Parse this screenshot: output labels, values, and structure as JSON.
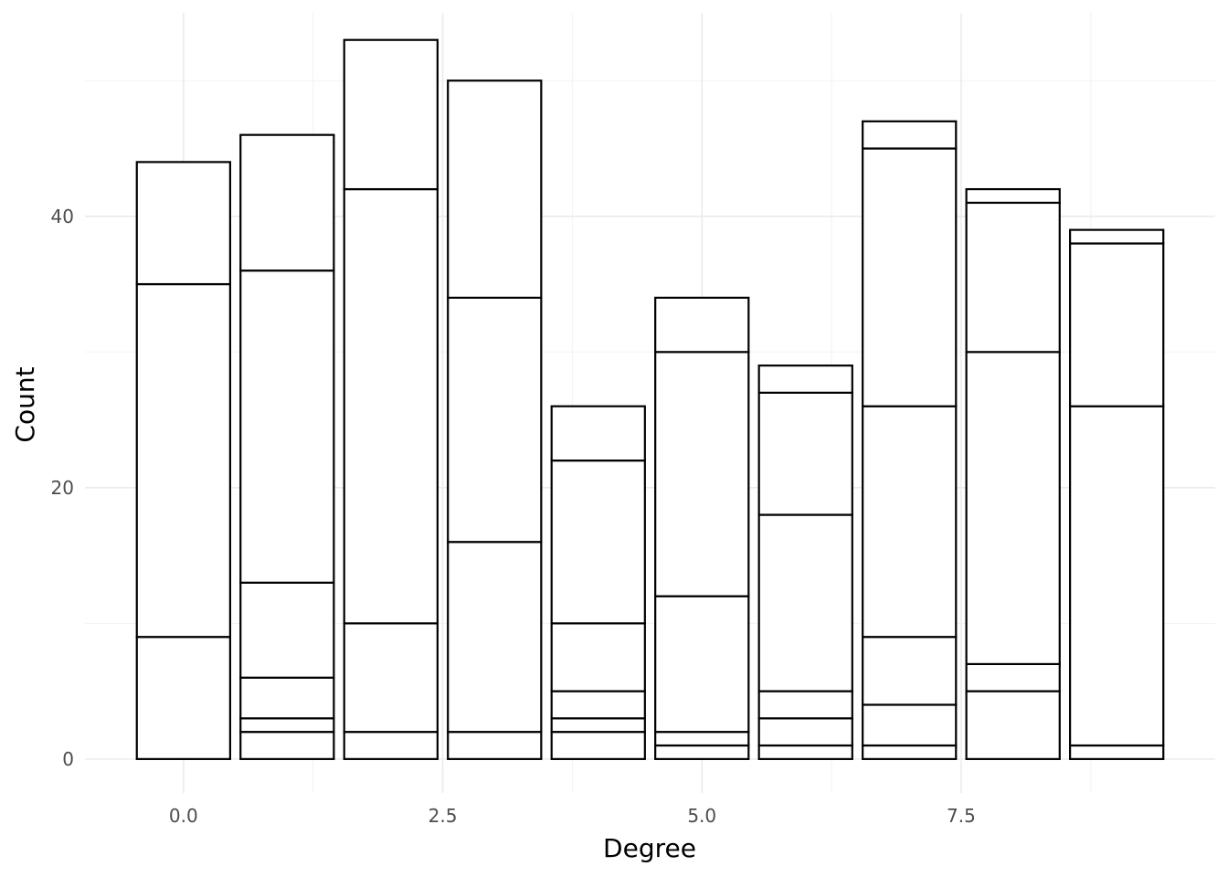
{
  "chart_data": {
    "type": "bar",
    "stacked": true,
    "xlabel": "Degree",
    "ylabel": "Count",
    "xlim": [
      -0.95,
      9.95
    ],
    "ylim": [
      -2.5,
      55
    ],
    "x_ticks": [
      0.0,
      2.5,
      5.0,
      7.5
    ],
    "x_tick_labels": [
      "0.0",
      "2.5",
      "5.0",
      "7.5"
    ],
    "y_ticks": [
      0,
      20,
      40
    ],
    "y_tick_labels": [
      "0",
      "20",
      "40"
    ],
    "grid": true,
    "bar_width": 0.9,
    "bars": [
      {
        "x": 0,
        "boundaries": [
          0,
          9,
          35,
          44
        ]
      },
      {
        "x": 1,
        "boundaries": [
          0,
          2,
          3,
          6,
          13,
          36,
          46
        ]
      },
      {
        "x": 2,
        "boundaries": [
          0,
          2,
          10,
          42,
          53
        ]
      },
      {
        "x": 3,
        "boundaries": [
          0,
          2,
          16,
          34,
          50
        ]
      },
      {
        "x": 4,
        "boundaries": [
          0,
          2,
          3,
          5,
          10,
          22,
          26
        ]
      },
      {
        "x": 5,
        "boundaries": [
          0,
          1,
          2,
          12,
          30,
          34
        ]
      },
      {
        "x": 6,
        "boundaries": [
          0,
          1,
          3,
          5,
          18,
          27,
          29
        ]
      },
      {
        "x": 7,
        "boundaries": [
          0,
          1,
          4,
          9,
          26,
          45,
          47
        ]
      },
      {
        "x": 8,
        "boundaries": [
          0,
          5,
          7,
          30,
          41,
          42
        ]
      },
      {
        "x": 9,
        "boundaries": [
          0,
          1,
          26,
          38,
          39
        ]
      }
    ]
  }
}
